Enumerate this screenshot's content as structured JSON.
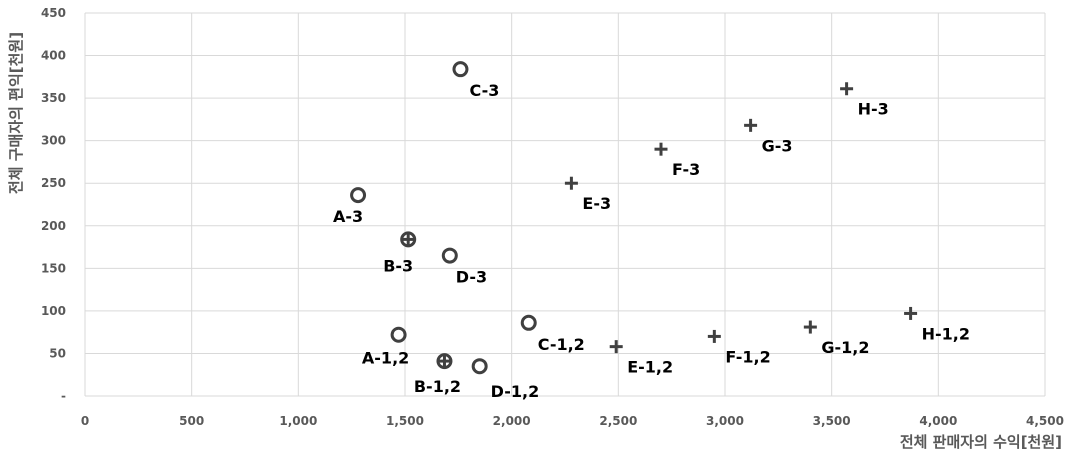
{
  "chart_data": {
    "type": "scatter",
    "xlabel": "전체 판매자의 수익[천원]",
    "ylabel": "전체 구매자의 편익[천원]",
    "xlim": [
      0,
      4500
    ],
    "ylim": [
      0,
      450
    ],
    "x_ticks": [
      {
        "value": 0,
        "label": "0"
      },
      {
        "value": 500,
        "label": "500"
      },
      {
        "value": 1000,
        "label": "1,000"
      },
      {
        "value": 1500,
        "label": "1,500"
      },
      {
        "value": 2000,
        "label": "2,000"
      },
      {
        "value": 2500,
        "label": "2,500"
      },
      {
        "value": 3000,
        "label": "3,000"
      },
      {
        "value": 3500,
        "label": "3,500"
      },
      {
        "value": 4000,
        "label": "4,000"
      },
      {
        "value": 4500,
        "label": "4,500"
      }
    ],
    "y_ticks": [
      {
        "value": 0,
        "label": "-"
      },
      {
        "value": 50,
        "label": "50"
      },
      {
        "value": 100,
        "label": "100"
      },
      {
        "value": 150,
        "label": "150"
      },
      {
        "value": 200,
        "label": "200"
      },
      {
        "value": 250,
        "label": "250"
      },
      {
        "value": 300,
        "label": "300"
      },
      {
        "value": 350,
        "label": "350"
      },
      {
        "value": 400,
        "label": "400"
      },
      {
        "value": 450,
        "label": "450"
      }
    ],
    "grid": true,
    "marker_color": "#404040",
    "series": [
      {
        "marker": "circle",
        "points": [
          {
            "x": 1280,
            "y": 236,
            "label": "A-3"
          },
          {
            "x": 1760,
            "y": 384,
            "label": "C-3"
          },
          {
            "x": 1710,
            "y": 165,
            "label": "D-3"
          },
          {
            "x": 1470,
            "y": 72,
            "label": "A-1,2"
          },
          {
            "x": 2080,
            "y": 86,
            "label": "C-1,2"
          },
          {
            "x": 1850,
            "y": 35,
            "label": "D-1,2"
          }
        ]
      },
      {
        "marker": "circle-plus",
        "points": [
          {
            "x": 1515,
            "y": 184,
            "label": "B-3"
          },
          {
            "x": 1685,
            "y": 41,
            "label": "B-1,2"
          }
        ]
      },
      {
        "marker": "plus",
        "points": [
          {
            "x": 2280,
            "y": 250,
            "label": "E-3"
          },
          {
            "x": 2700,
            "y": 290,
            "label": "F-3"
          },
          {
            "x": 3120,
            "y": 318,
            "label": "G-3"
          },
          {
            "x": 3570,
            "y": 361,
            "label": "H-3"
          },
          {
            "x": 2490,
            "y": 58,
            "label": "E-1,2"
          },
          {
            "x": 2950,
            "y": 70,
            "label": "F-1,2"
          },
          {
            "x": 3400,
            "y": 81,
            "label": "G-1,2"
          },
          {
            "x": 3870,
            "y": 97,
            "label": "H-1,2"
          }
        ]
      }
    ]
  }
}
